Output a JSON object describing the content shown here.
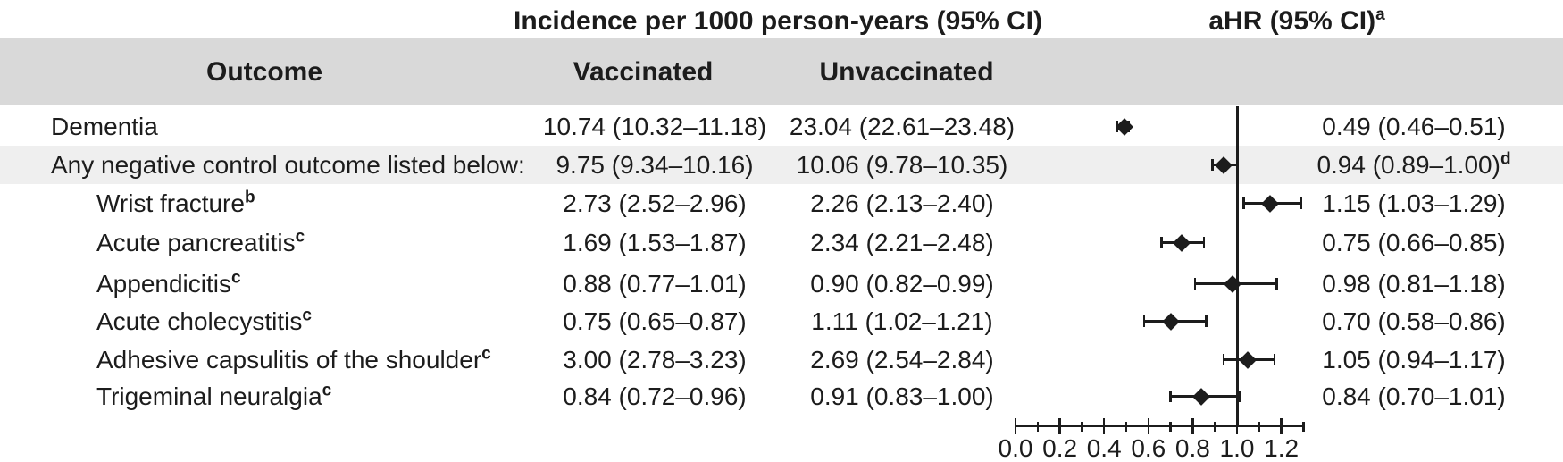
{
  "titles": {
    "incidence": "Incidence per 1000 person-years (95% CI)",
    "ahr": "aHR (95% CI)",
    "ahr_sup": "a"
  },
  "header": {
    "outcome": "Outcome",
    "vaccinated": "Vaccinated",
    "unvaccinated": "Unvaccinated"
  },
  "rows": [
    {
      "outcome": "Dementia",
      "sup": "",
      "indent": false,
      "shaded": false,
      "vaccinated": "10.74 (10.32–11.18)",
      "unvaccinated": "23.04 (22.61–23.48)",
      "ahr_text": "0.49 (0.46–0.51)",
      "ahr_sup": "",
      "ahr": 0.49,
      "ci_low": 0.46,
      "ci_high": 0.51
    },
    {
      "outcome": "Any negative control outcome listed below:",
      "sup": "",
      "indent": false,
      "shaded": true,
      "vaccinated": "9.75 (9.34–10.16)",
      "unvaccinated": "10.06 (9.78–10.35)",
      "ahr_text": "0.94 (0.89–1.00)",
      "ahr_sup": "d",
      "ahr": 0.94,
      "ci_low": 0.89,
      "ci_high": 1.0
    },
    {
      "outcome": "Wrist fracture",
      "sup": "b",
      "indent": true,
      "shaded": false,
      "vaccinated": "2.73 (2.52–2.96)",
      "unvaccinated": "2.26 (2.13–2.40)",
      "ahr_text": "1.15 (1.03–1.29)",
      "ahr_sup": "",
      "ahr": 1.15,
      "ci_low": 1.03,
      "ci_high": 1.29
    },
    {
      "outcome": "Acute pancreatitis",
      "sup": "c",
      "indent": true,
      "shaded": false,
      "vaccinated": "1.69 (1.53–1.87)",
      "unvaccinated": "2.34 (2.21–2.48)",
      "ahr_text": "0.75 (0.66–0.85)",
      "ahr_sup": "",
      "ahr": 0.75,
      "ci_low": 0.66,
      "ci_high": 0.85
    },
    {
      "outcome": "Appendicitis",
      "sup": "c",
      "indent": true,
      "shaded": false,
      "vaccinated": "0.88 (0.77–1.01)",
      "unvaccinated": "0.90 (0.82–0.99)",
      "ahr_text": "0.98 (0.81–1.18)",
      "ahr_sup": "",
      "ahr": 0.98,
      "ci_low": 0.81,
      "ci_high": 1.18
    },
    {
      "outcome": "Acute cholecystitis",
      "sup": "c",
      "indent": true,
      "shaded": false,
      "vaccinated": "0.75 (0.65–0.87)",
      "unvaccinated": "1.11 (1.02–1.21)",
      "ahr_text": "0.70 (0.58–0.86)",
      "ahr_sup": "",
      "ahr": 0.7,
      "ci_low": 0.58,
      "ci_high": 0.86
    },
    {
      "outcome": "Adhesive capsulitis of the shoulder",
      "sup": "c",
      "indent": true,
      "shaded": false,
      "vaccinated": "3.00 (2.78–3.23)",
      "unvaccinated": "2.69 (2.54–2.84)",
      "ahr_text": "1.05 (0.94–1.17)",
      "ahr_sup": "",
      "ahr": 1.05,
      "ci_low": 0.94,
      "ci_high": 1.17
    },
    {
      "outcome": "Trigeminal neuralgia",
      "sup": "c",
      "indent": true,
      "shaded": false,
      "vaccinated": "0.84 (0.72–0.96)",
      "unvaccinated": "0.91 (0.83–1.00)",
      "ahr_text": "0.84 (0.70–1.01)",
      "ahr_sup": "",
      "ahr": 0.84,
      "ci_low": 0.7,
      "ci_high": 1.01
    }
  ],
  "axis": {
    "tick_labels": [
      "0.0",
      "0.2",
      "0.4",
      "0.6",
      "0.8",
      "1.0",
      "1.2"
    ],
    "tick_values": [
      0.0,
      0.2,
      0.4,
      0.6,
      0.8,
      1.0,
      1.2
    ],
    "minor_tick_values": [
      0.1,
      0.3,
      0.5,
      0.7,
      0.9,
      1.1,
      1.3
    ],
    "min": 0.0,
    "max": 1.3,
    "reference_line": 1.0
  },
  "colors": {
    "header_band": "#d9d9d9",
    "shaded_row": "#efefef",
    "ink": "#1c1c1c"
  },
  "chart_data": {
    "type": "scatter",
    "subtype": "forest-plot",
    "title": "aHR (95% CI)",
    "categories": [
      "Dementia",
      "Any negative control outcome listed below:",
      "Wrist fracture",
      "Acute pancreatitis",
      "Appendicitis",
      "Acute cholecystitis",
      "Adhesive capsulitis of the shoulder",
      "Trigeminal neuralgia"
    ],
    "series": [
      {
        "name": "aHR",
        "values": [
          0.49,
          0.94,
          1.15,
          0.75,
          0.98,
          0.7,
          1.05,
          0.84
        ]
      },
      {
        "name": "ci_low",
        "values": [
          0.46,
          0.89,
          1.03,
          0.66,
          0.81,
          0.58,
          0.94,
          0.7
        ]
      },
      {
        "name": "ci_high",
        "values": [
          0.51,
          1.0,
          1.29,
          0.85,
          1.18,
          0.86,
          1.17,
          1.01
        ]
      }
    ],
    "xlabel": "",
    "ylabel": "",
    "xlim": [
      0.0,
      1.3
    ],
    "x_ticks": [
      0.0,
      0.2,
      0.4,
      0.6,
      0.8,
      1.0,
      1.2
    ],
    "reference_line_x": 1.0,
    "grid": false,
    "legend": "none",
    "marker": "diamond"
  }
}
